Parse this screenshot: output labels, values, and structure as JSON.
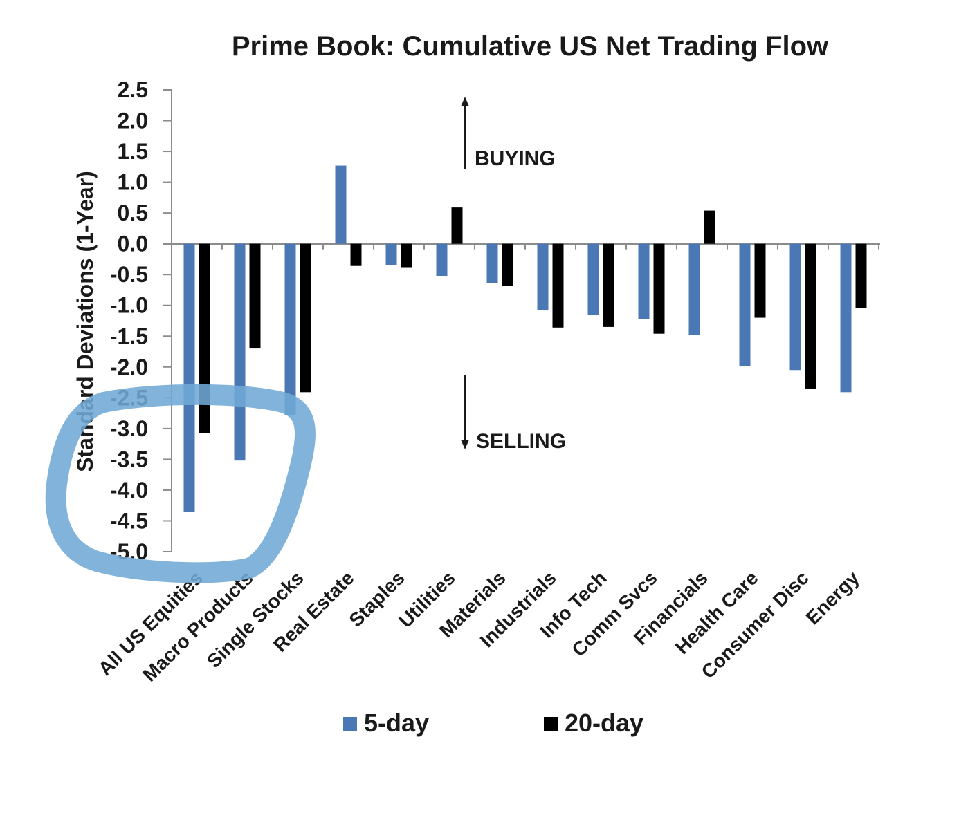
{
  "chart_data": {
    "type": "bar",
    "title": "Prime Book: Cumulative US Net Trading Flow",
    "ylabel": "Standard Deviations (1-Year)",
    "xlabel": "",
    "ylim": [
      -5.0,
      2.5
    ],
    "yticks": [
      "2.5",
      "2.0",
      "1.5",
      "1.0",
      "0.5",
      "0.0",
      "-0.5",
      "-1.0",
      "-1.5",
      "-2.0",
      "-2.5",
      "-3.0",
      "-3.5",
      "-4.0",
      "-4.5",
      "-5.0"
    ],
    "categories": [
      "All US Equities",
      "Macro Products",
      "Single Stocks",
      "Real Estate",
      "Staples",
      "Utilities",
      "Materials",
      "Industrials",
      "Info Tech",
      "Comm Svcs",
      "Financials",
      "Health Care",
      "Consumer Disc",
      "Energy"
    ],
    "series": [
      {
        "name": "5-day",
        "color": "#4a78b4",
        "values": [
          -4.35,
          -3.52,
          -2.78,
          1.27,
          -0.35,
          -0.52,
          -0.64,
          -1.08,
          -1.16,
          -1.22,
          -1.48,
          -1.98,
          -2.05,
          -2.41
        ]
      },
      {
        "name": "20-day",
        "color": "#000000",
        "values": [
          -3.08,
          -1.7,
          -2.41,
          -0.36,
          -0.38,
          0.59,
          -0.68,
          -1.36,
          -1.35,
          -1.46,
          0.54,
          -1.2,
          -2.35,
          -1.04
        ]
      }
    ],
    "annotations": {
      "buying": "BUYING",
      "selling": "SELLING"
    },
    "legend_position": "bottom",
    "grid": false,
    "highlight_color": "#6fa8d6"
  }
}
